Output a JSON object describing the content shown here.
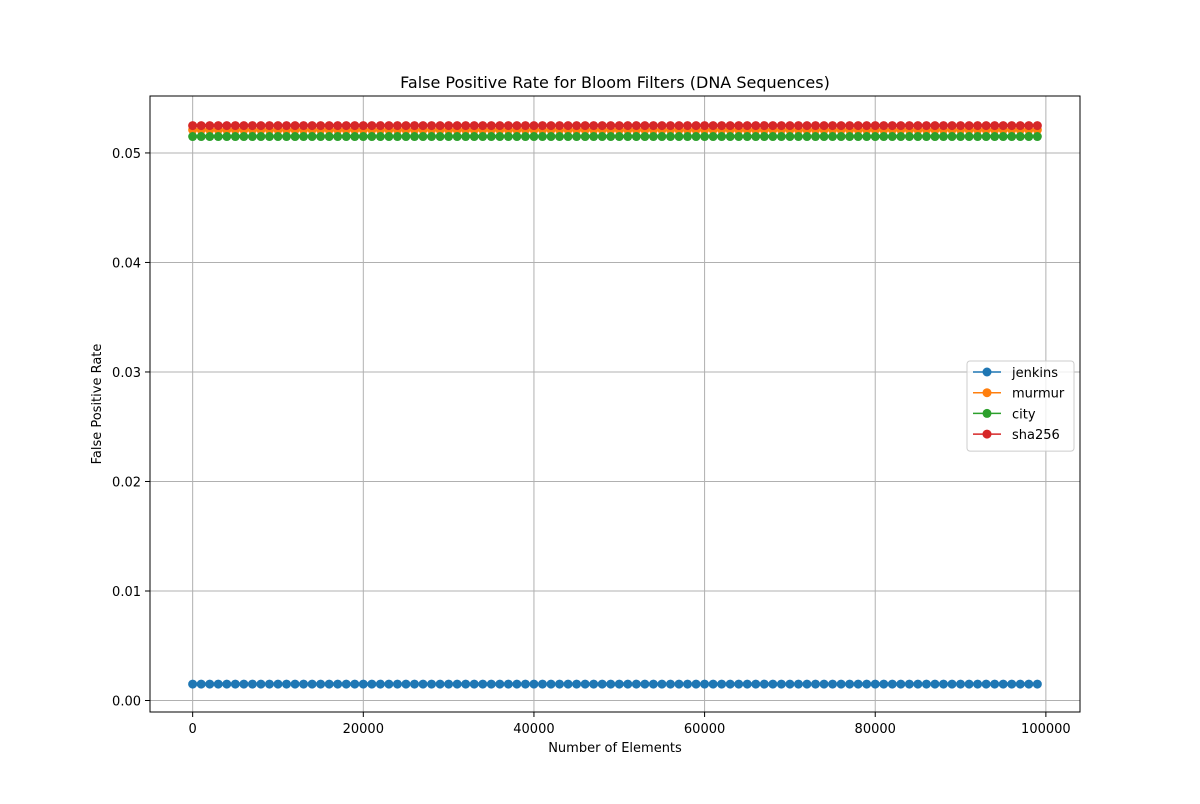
{
  "chart_data": {
    "type": "line",
    "title": "False Positive Rate for Bloom Filters (DNA Sequences)",
    "xlabel": "Number of Elements",
    "ylabel": "False Positive Rate",
    "xlim": [
      -5000,
      104000
    ],
    "ylim": [
      -0.00105,
      0.0552
    ],
    "x_ticks": [
      0,
      20000,
      40000,
      60000,
      80000,
      100000
    ],
    "x_tick_labels": [
      "0",
      "20000",
      "40000",
      "60000",
      "80000",
      "100000"
    ],
    "y_ticks": [
      0.0,
      0.01,
      0.02,
      0.03,
      0.04,
      0.05
    ],
    "y_tick_labels": [
      "0.00",
      "0.01",
      "0.02",
      "0.03",
      "0.04",
      "0.05"
    ],
    "grid": true,
    "legend_position": "center-right",
    "x": {
      "start": 0,
      "stop": 99000,
      "step": 1000
    },
    "series": [
      {
        "name": "jenkins",
        "color": "#1f77b4",
        "value": 0.0015
      },
      {
        "name": "murmur",
        "color": "#ff7f0e",
        "value": 0.0521
      },
      {
        "name": "city",
        "color": "#2ca02c",
        "value": 0.0515
      },
      {
        "name": "sha256",
        "color": "#d62728",
        "value": 0.0525
      }
    ]
  }
}
